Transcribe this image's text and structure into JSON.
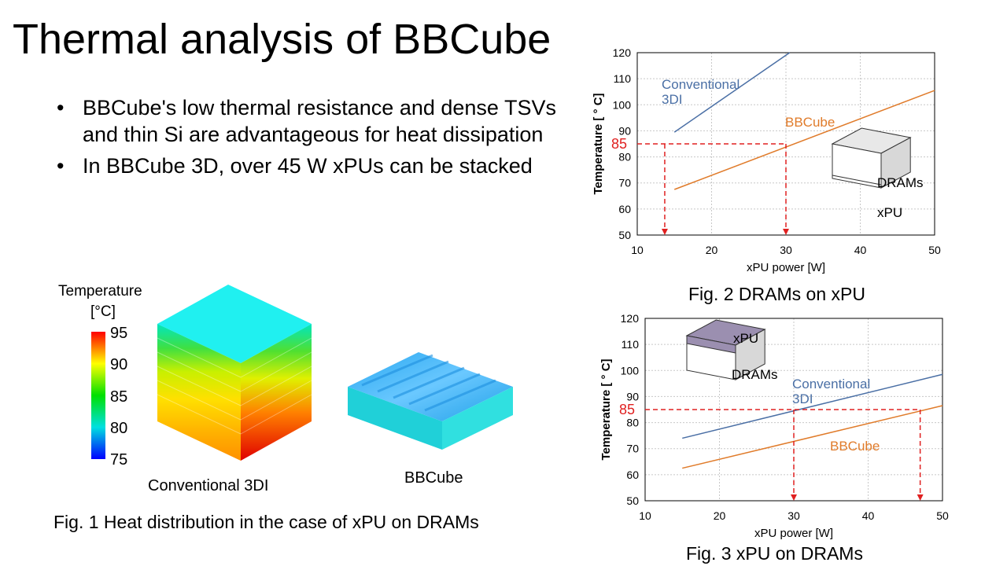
{
  "slide": {
    "title": "Thermal analysis of BBCube",
    "bullets": [
      {
        "text": "BBCube's low thermal resistance and dense TSVs and thin Si are advantageous  for heat dissipation"
      },
      {
        "text": "In BBCube 3D, over 45 W xPUs can be stacked"
      }
    ]
  },
  "fig1": {
    "colorbar_title_line1": "Temperature",
    "colorbar_title_line2": "[°C]",
    "colorbar_ticks": [
      "95",
      "90",
      "85",
      "80",
      "75"
    ],
    "label_conventional": "Conventional 3DI",
    "label_bbcube": "BBCube",
    "caption": "Fig. 1 Heat distribution in the case of xPU on DRAMs"
  },
  "chart_data": [
    {
      "type": "line",
      "caption": "Fig. 2 DRAMs on xPU",
      "xlabel": "xPU power [W]",
      "ylabel": "Temperature [ ° C]",
      "xlim": [
        10,
        50
      ],
      "ylim": [
        50,
        120
      ],
      "xticks": [
        "10",
        "20",
        "30",
        "40",
        "50"
      ],
      "yticks": [
        "50",
        "60",
        "70",
        "80",
        "90",
        "100",
        "110",
        "120"
      ],
      "grid": true,
      "threshold": {
        "value": 85,
        "label": "85",
        "x_intersections": [
          13.7,
          30
        ]
      },
      "series": [
        {
          "name": "Conventional 3DI",
          "label_lines": [
            "Conventional",
            "3DI"
          ],
          "color": "#4a6fa5",
          "x": [
            15,
            30.5
          ],
          "y": [
            89.5,
            120
          ]
        },
        {
          "name": "BBCube",
          "label_lines": [
            "BBCube"
          ],
          "color": "#e07b2a",
          "x": [
            15,
            50
          ],
          "y": [
            67.5,
            105.5
          ]
        }
      ],
      "inset": {
        "top_label": "DRAMs",
        "bottom_label": "xPU"
      }
    },
    {
      "type": "line",
      "caption": "Fig. 3 xPU on DRAMs",
      "xlabel": "xPU power [W]",
      "ylabel": "Temperature [ ° C]",
      "xlim": [
        10,
        50
      ],
      "ylim": [
        50,
        120
      ],
      "xticks": [
        "10",
        "20",
        "30",
        "40",
        "50"
      ],
      "yticks": [
        "50",
        "60",
        "70",
        "80",
        "90",
        "100",
        "110",
        "120"
      ],
      "grid": true,
      "threshold": {
        "value": 85,
        "label": "85",
        "x_intersections": [
          30,
          47
        ]
      },
      "series": [
        {
          "name": "Conventional 3DI",
          "label_lines": [
            "Conventional",
            "3DI"
          ],
          "color": "#4a6fa5",
          "x": [
            15,
            50
          ],
          "y": [
            74,
            98.5
          ]
        },
        {
          "name": "BBCube",
          "label_lines": [
            "BBCube"
          ],
          "color": "#e07b2a",
          "x": [
            15,
            50
          ],
          "y": [
            62.5,
            86.5
          ]
        }
      ],
      "inset": {
        "top_label": "xPU",
        "bottom_label": "DRAMs"
      }
    }
  ]
}
